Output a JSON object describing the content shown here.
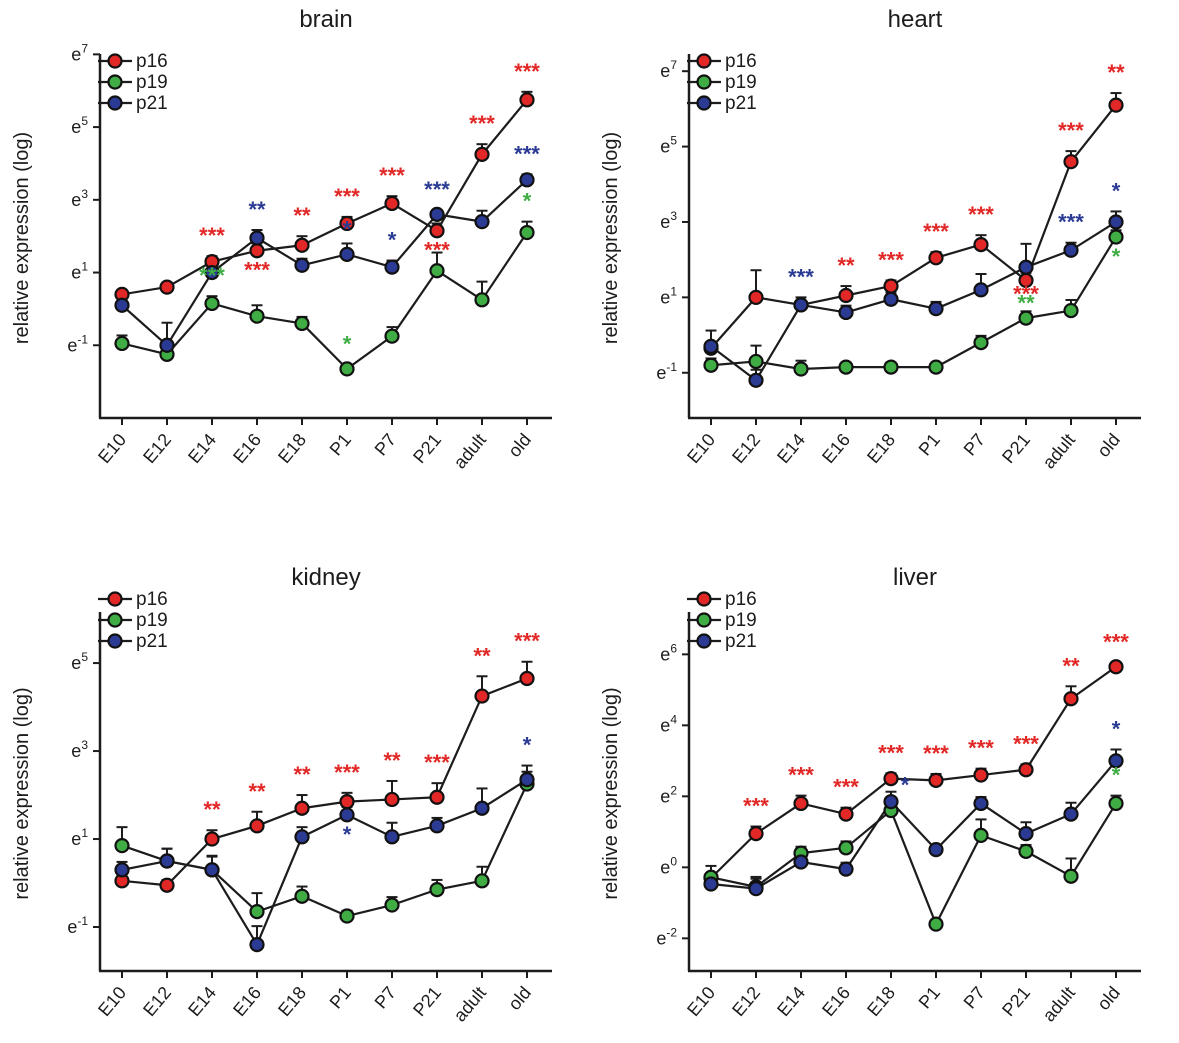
{
  "figure": {
    "description": "Four line charts of relative gene expression over developmental stages",
    "panels": [
      "brain",
      "heart",
      "kidney",
      "liver"
    ]
  },
  "chart_data": [
    {
      "type": "line",
      "title": "brain",
      "ylabel": "relative expression (log)",
      "categories": [
        "E10",
        "E12",
        "E14",
        "E16",
        "E18",
        "P1",
        "P7",
        "P21",
        "adult",
        "old"
      ],
      "ytick_exponents": [
        7,
        5,
        3,
        1,
        -1
      ],
      "ylim": [
        -3.0,
        6.9
      ],
      "legend_position": "top-left",
      "grid": false,
      "series": [
        {
          "name": "p16",
          "color": "#e12826",
          "values": [
            0.4,
            0.6,
            1.3,
            1.6,
            1.75,
            2.35,
            2.9,
            2.15,
            4.25,
            5.75
          ],
          "err": [
            0.12,
            0.12,
            0.15,
            0.2,
            0.25,
            0.18,
            0.2,
            0.2,
            0.28,
            0.22
          ]
        },
        {
          "name": "p19",
          "color": "#3fad44",
          "values": [
            -0.95,
            -1.25,
            0.15,
            -0.2,
            -0.4,
            -1.65,
            -0.75,
            1.05,
            0.25,
            2.1
          ],
          "err": [
            0.22,
            0.15,
            0.2,
            0.3,
            0.18,
            0.12,
            0.25,
            0.5,
            0.5,
            0.3
          ]
        },
        {
          "name": "p21",
          "color": "#2b3b94",
          "values": [
            0.1,
            -1.0,
            1.0,
            1.95,
            1.2,
            1.5,
            1.15,
            2.6,
            2.4,
            3.55
          ],
          "err": [
            0.15,
            0.62,
            0.18,
            0.22,
            0.18,
            0.3,
            0.18,
            0.12,
            0.3,
            0.15
          ]
        }
      ],
      "sig": [
        {
          "series": "p16",
          "stage": "E14",
          "text": "***",
          "pos": "above"
        },
        {
          "series": "p19",
          "stage": "E14",
          "text": "***",
          "pos": "above"
        },
        {
          "series": "p21",
          "stage": "E16",
          "text": "**",
          "pos": "above"
        },
        {
          "series": "p16",
          "stage": "E16",
          "text": "***",
          "pos": "below"
        },
        {
          "series": "p16",
          "stage": "E18",
          "text": "**",
          "pos": "above"
        },
        {
          "series": "p16",
          "stage": "P1",
          "text": "***",
          "pos": "above"
        },
        {
          "series": "p21",
          "stage": "P1",
          "text": "*",
          "pos": "above",
          "dy": 6
        },
        {
          "series": "p19",
          "stage": "P1",
          "text": "*",
          "pos": "above"
        },
        {
          "series": "p16",
          "stage": "P7",
          "text": "***",
          "pos": "above"
        },
        {
          "series": "p21",
          "stage": "P7",
          "text": "*",
          "pos": "above"
        },
        {
          "series": "p21",
          "stage": "P21",
          "text": "***",
          "pos": "above"
        },
        {
          "series": "p16",
          "stage": "P21",
          "text": "***",
          "pos": "below"
        },
        {
          "series": "p16",
          "stage": "adult",
          "text": "***",
          "pos": "above"
        },
        {
          "series": "p16",
          "stage": "old",
          "text": "***",
          "pos": "above"
        },
        {
          "series": "p21",
          "stage": "old",
          "text": "***",
          "pos": "above"
        },
        {
          "series": "p19",
          "stage": "old",
          "text": "*",
          "pos": "above"
        }
      ]
    },
    {
      "type": "line",
      "title": "heart",
      "ylabel": "relative expression (log)",
      "categories": [
        "E10",
        "E12",
        "E14",
        "E16",
        "E18",
        "P1",
        "P7",
        "P21",
        "adult",
        "old"
      ],
      "ytick_exponents": [
        7,
        5,
        3,
        1,
        -1
      ],
      "ylim": [
        -2.2,
        7.35
      ],
      "legend_position": "top-left",
      "grid": false,
      "series": [
        {
          "name": "p16",
          "color": "#e12826",
          "values": [
            -0.35,
            1.0,
            0.8,
            1.05,
            1.3,
            2.05,
            2.4,
            1.45,
            4.6,
            6.1
          ],
          "err": [
            0.12,
            0.72,
            0.1,
            0.25,
            0.15,
            0.15,
            0.25,
            0.2,
            0.28,
            0.32
          ]
        },
        {
          "name": "p19",
          "color": "#3fad44",
          "values": [
            -0.8,
            -0.7,
            -0.9,
            -0.85,
            -0.85,
            -0.85,
            -0.2,
            0.45,
            0.65,
            2.6
          ],
          "err": [
            0.18,
            0.42,
            0.22,
            0.12,
            0.12,
            0.12,
            0.18,
            0.18,
            0.28,
            0.18
          ]
        },
        {
          "name": "p21",
          "color": "#2b3b94",
          "values": [
            -0.3,
            -1.2,
            0.8,
            0.6,
            0.95,
            0.7,
            1.2,
            1.8,
            2.25,
            3.0
          ],
          "err": [
            0.42,
            0.28,
            0.2,
            0.18,
            0.18,
            0.18,
            0.42,
            0.62,
            0.2,
            0.28
          ]
        }
      ],
      "sig": [
        {
          "series": "p21",
          "stage": "E14",
          "text": "***",
          "pos": "above"
        },
        {
          "series": "p16",
          "stage": "E16",
          "text": "**",
          "pos": "above"
        },
        {
          "series": "p16",
          "stage": "E18",
          "text": "***",
          "pos": "above"
        },
        {
          "series": "p16",
          "stage": "P1",
          "text": "***",
          "pos": "above"
        },
        {
          "series": "p16",
          "stage": "P7",
          "text": "***",
          "pos": "above"
        },
        {
          "series": "p16",
          "stage": "P21",
          "text": "***",
          "pos": "below",
          "dy": -6
        },
        {
          "series": "p19",
          "stage": "P21",
          "text": "**",
          "pos": "above",
          "dy": 12
        },
        {
          "series": "p21",
          "stage": "adult",
          "text": "***",
          "pos": "above"
        },
        {
          "series": "p16",
          "stage": "adult",
          "text": "***",
          "pos": "above"
        },
        {
          "series": "p16",
          "stage": "old",
          "text": "**",
          "pos": "above"
        },
        {
          "series": "p21",
          "stage": "old",
          "text": "*",
          "pos": "above"
        },
        {
          "series": "p19",
          "stage": "old",
          "text": "*",
          "pos": "below"
        }
      ]
    },
    {
      "type": "line",
      "title": "kidney",
      "ylabel": "relative expression (log)",
      "categories": [
        "E10",
        "E12",
        "E14",
        "E16",
        "E18",
        "P1",
        "P7",
        "P21",
        "adult",
        "old"
      ],
      "ytick_exponents": [
        5,
        3,
        1,
        -1
      ],
      "ylim": [
        -2.0,
        6.07
      ],
      "legend_position": "top-left",
      "grid": false,
      "series": [
        {
          "name": "p16",
          "color": "#e12826",
          "values": [
            0.05,
            -0.05,
            1.0,
            1.3,
            1.7,
            1.85,
            1.9,
            1.95,
            4.25,
            4.65
          ],
          "err": [
            0.12,
            0.12,
            0.2,
            0.32,
            0.3,
            0.2,
            0.42,
            0.32,
            0.45,
            0.38
          ]
        },
        {
          "name": "p19",
          "color": "#3fad44",
          "values": [
            0.85,
            0.5,
            0.3,
            -0.65,
            -0.3,
            -0.75,
            -0.5,
            -0.15,
            0.05,
            2.25
          ],
          "err": [
            0.42,
            0.28,
            0.3,
            0.42,
            0.22,
            0.12,
            0.18,
            0.22,
            0.32,
            0.28
          ]
        },
        {
          "name": "p21",
          "color": "#2b3b94",
          "values": [
            0.3,
            0.5,
            0.3,
            -1.4,
            1.05,
            1.55,
            1.05,
            1.3,
            1.7,
            2.35
          ],
          "err": [
            0.18,
            0.28,
            0.32,
            0.42,
            0.22,
            0.18,
            0.32,
            0.18,
            0.45,
            0.32
          ]
        }
      ],
      "sig": [
        {
          "series": "p16",
          "stage": "E14",
          "text": "**",
          "pos": "above"
        },
        {
          "series": "p16",
          "stage": "E16",
          "text": "**",
          "pos": "above"
        },
        {
          "series": "p16",
          "stage": "E18",
          "text": "**",
          "pos": "above"
        },
        {
          "series": "p16",
          "stage": "P1",
          "text": "***",
          "pos": "above"
        },
        {
          "series": "p21",
          "stage": "P1",
          "text": "*",
          "pos": "below"
        },
        {
          "series": "p16",
          "stage": "P7",
          "text": "**",
          "pos": "above"
        },
        {
          "series": "p16",
          "stage": "P21",
          "text": "***",
          "pos": "above"
        },
        {
          "series": "p16",
          "stage": "adult",
          "text": "**",
          "pos": "above"
        },
        {
          "series": "p16",
          "stage": "old",
          "text": "***",
          "pos": "above"
        },
        {
          "series": "p21",
          "stage": "old",
          "text": "*",
          "pos": "above"
        }
      ]
    },
    {
      "type": "line",
      "title": "liver",
      "ylabel": "relative expression (log)",
      "categories": [
        "E10",
        "E12",
        "E14",
        "E16",
        "E18",
        "P1",
        "P7",
        "P21",
        "adult",
        "old"
      ],
      "ytick_exponents": [
        6,
        4,
        2,
        0,
        -2
      ],
      "ylim": [
        -2.92,
        7.08
      ],
      "legend_position": "top-left",
      "grid": false,
      "series": [
        {
          "name": "p16",
          "color": "#e12826",
          "values": [
            -0.3,
            0.95,
            1.8,
            1.5,
            2.5,
            2.45,
            2.6,
            2.75,
            4.75,
            5.65
          ],
          "err": [
            0.12,
            0.2,
            0.22,
            0.18,
            0.15,
            0.18,
            0.18,
            0.15,
            0.35,
            0.12
          ]
        },
        {
          "name": "p19",
          "color": "#3fad44",
          "values": [
            -0.28,
            -0.55,
            0.4,
            0.55,
            1.6,
            -1.6,
            0.9,
            0.45,
            -0.25,
            1.8
          ],
          "err": [
            0.32,
            0.28,
            0.18,
            0.18,
            0.28,
            0.12,
            0.45,
            0.18,
            0.5,
            0.22
          ]
        },
        {
          "name": "p21",
          "color": "#2b3b94",
          "values": [
            -0.47,
            -0.6,
            0.15,
            -0.05,
            1.85,
            0.5,
            1.8,
            0.95,
            1.5,
            3.0
          ],
          "err": [
            0.18,
            0.28,
            0.18,
            0.18,
            0.28,
            0.12,
            0.18,
            0.32,
            0.32,
            0.32
          ]
        }
      ],
      "sig": [
        {
          "series": "p16",
          "stage": "E12",
          "text": "***",
          "pos": "above"
        },
        {
          "series": "p16",
          "stage": "E14",
          "text": "***",
          "pos": "above"
        },
        {
          "series": "p16",
          "stage": "E16",
          "text": "***",
          "pos": "above"
        },
        {
          "series": "p16",
          "stage": "E18",
          "text": "***",
          "pos": "above"
        },
        {
          "series": "p21",
          "stage": "E18",
          "text": "*",
          "pos": "above",
          "dx": 14,
          "dy": 14
        },
        {
          "series": "p16",
          "stage": "P1",
          "text": "***",
          "pos": "above"
        },
        {
          "series": "p16",
          "stage": "P7",
          "text": "***",
          "pos": "above"
        },
        {
          "series": "p16",
          "stage": "P21",
          "text": "***",
          "pos": "above"
        },
        {
          "series": "p16",
          "stage": "adult",
          "text": "**",
          "pos": "above"
        },
        {
          "series": "p16",
          "stage": "old",
          "text": "***",
          "pos": "above"
        },
        {
          "series": "p21",
          "stage": "old",
          "text": "*",
          "pos": "above"
        },
        {
          "series": "p19",
          "stage": "old",
          "text": "*",
          "pos": "above"
        }
      ]
    }
  ]
}
